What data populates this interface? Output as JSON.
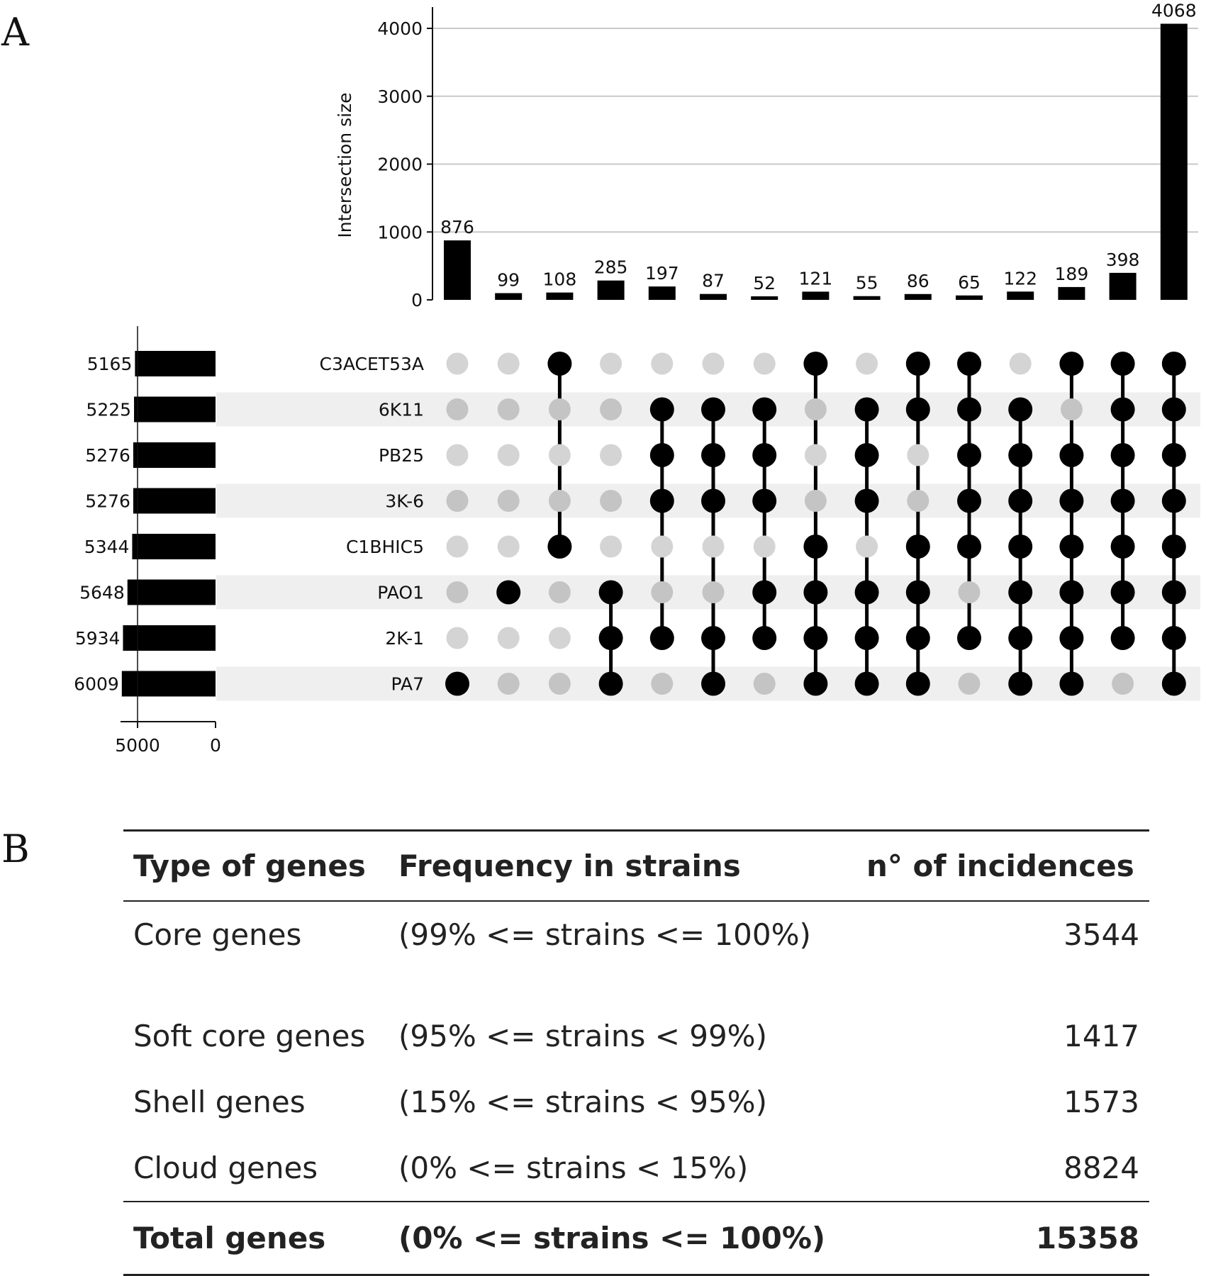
{
  "panel_a_label": "A",
  "panel_b_label": "B",
  "chart_data": {
    "type": "upset",
    "ylabel": "Intersection size",
    "ylim": [
      0,
      4300
    ],
    "yticks": [
      0,
      1000,
      2000,
      3000,
      4000
    ],
    "set_size_ticks": [
      5000,
      0
    ],
    "sets": [
      {
        "name": "C3ACET53A",
        "size": 5165
      },
      {
        "name": "6K11",
        "size": 5225
      },
      {
        "name": "PB25",
        "size": 5276
      },
      {
        "name": "3K-6",
        "size": 5276
      },
      {
        "name": "C1BHIC5",
        "size": 5344
      },
      {
        "name": "PAO1",
        "size": 5648
      },
      {
        "name": "2K-1",
        "size": 5934
      },
      {
        "name": "PA7",
        "size": 6009
      }
    ],
    "intersections": [
      {
        "size": 876,
        "members": [
          "PA7"
        ]
      },
      {
        "size": 99,
        "members": [
          "PAO1"
        ]
      },
      {
        "size": 108,
        "members": [
          "C3ACET53A",
          "C1BHIC5"
        ]
      },
      {
        "size": 285,
        "members": [
          "PAO1",
          "2K-1",
          "PA7"
        ]
      },
      {
        "size": 197,
        "members": [
          "6K11",
          "PB25",
          "3K-6",
          "2K-1"
        ]
      },
      {
        "size": 87,
        "members": [
          "6K11",
          "PB25",
          "3K-6",
          "2K-1",
          "PA7"
        ]
      },
      {
        "size": 52,
        "members": [
          "6K11",
          "PB25",
          "3K-6",
          "PAO1",
          "2K-1"
        ]
      },
      {
        "size": 121,
        "members": [
          "C3ACET53A",
          "C1BHIC5",
          "PAO1",
          "2K-1",
          "PA7"
        ]
      },
      {
        "size": 55,
        "members": [
          "6K11",
          "PB25",
          "3K-6",
          "PAO1",
          "2K-1",
          "PA7"
        ]
      },
      {
        "size": 86,
        "members": [
          "C3ACET53A",
          "6K11",
          "C1BHIC5",
          "PAO1",
          "2K-1",
          "PA7"
        ]
      },
      {
        "size": 65,
        "members": [
          "C3ACET53A",
          "6K11",
          "PB25",
          "3K-6",
          "C1BHIC5",
          "2K-1"
        ]
      },
      {
        "size": 122,
        "members": [
          "6K11",
          "PB25",
          "3K-6",
          "C1BHIC5",
          "PAO1",
          "2K-1",
          "PA7"
        ]
      },
      {
        "size": 189,
        "members": [
          "C3ACET53A",
          "PB25",
          "3K-6",
          "C1BHIC5",
          "PAO1",
          "2K-1",
          "PA7"
        ]
      },
      {
        "size": 398,
        "members": [
          "C3ACET53A",
          "6K11",
          "PB25",
          "3K-6",
          "C1BHIC5",
          "PAO1",
          "2K-1"
        ]
      },
      {
        "size": 4068,
        "members": [
          "C3ACET53A",
          "6K11",
          "PB25",
          "3K-6",
          "C1BHIC5",
          "PAO1",
          "2K-1",
          "PA7"
        ]
      }
    ]
  },
  "table": {
    "headers": {
      "type": "Type of genes",
      "frequency": "Frequency in strains",
      "count": "n° of incidences"
    },
    "rows": [
      {
        "type": "Core genes",
        "frequency": "(99% <= strains <= 100%)",
        "count": "3544"
      },
      {
        "type": "Soft core genes",
        "frequency": "(95% <= strains < 99%)",
        "count": "1417"
      },
      {
        "type": "Shell genes",
        "frequency": "(15% <= strains < 95%)",
        "count": "1573"
      },
      {
        "type": "Cloud genes",
        "frequency": "(0% <= strains < 15%)",
        "count": "8824"
      }
    ],
    "total": {
      "type": "Total genes",
      "frequency": "(0% <= strains <= 100%)",
      "count": "15358"
    }
  }
}
